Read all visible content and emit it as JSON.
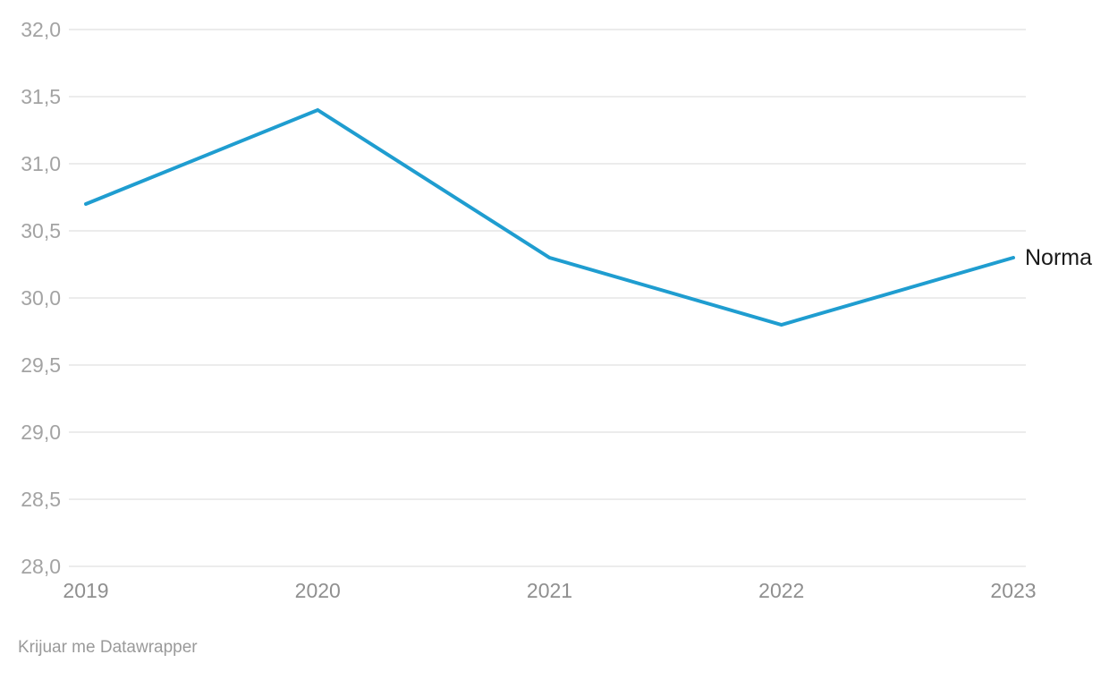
{
  "chart_data": {
    "type": "line",
    "x": [
      "2019",
      "2020",
      "2021",
      "2022",
      "2023"
    ],
    "series": [
      {
        "name": "Norma",
        "values": [
          30.7,
          31.4,
          30.3,
          29.8,
          30.3
        ]
      }
    ],
    "ylim": [
      28.0,
      32.0
    ],
    "ytick_values": [
      28.0,
      28.5,
      29.0,
      29.5,
      30.0,
      30.5,
      31.0,
      31.5,
      32.0
    ],
    "ytick_labels": [
      "28,0",
      "28,5",
      "29,0",
      "29,5",
      "30,0",
      "30,5",
      "31,0",
      "31,5",
      "32,0"
    ],
    "decimal_separator": ",",
    "grid": "horizontal",
    "legend_position": "line-end-right",
    "line_color": "#1f9dd0"
  },
  "footer": {
    "attribution": "Krijuar me Datawrapper"
  },
  "colors": {
    "background": "#ffffff",
    "line": "#1f9dd0",
    "gridline": "#e6e6e6",
    "y_tick_text": "#a3a3a3",
    "x_tick_text": "#8f8f8f",
    "series_label_text": "#1a1a1a",
    "attribution_text": "#9a9a9a"
  }
}
